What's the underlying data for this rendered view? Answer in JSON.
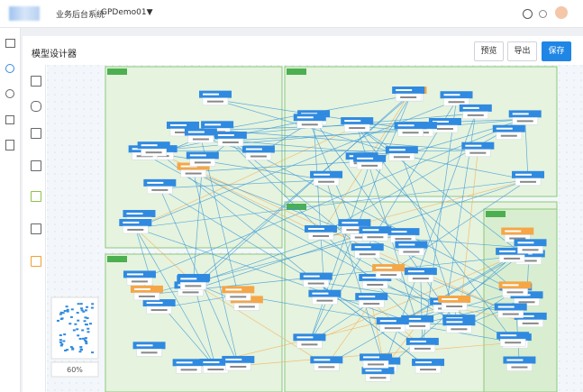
{
  "header": {
    "app_name": "业务后台系统",
    "project": "GPDemo01▼"
  },
  "designer": {
    "title": "模型设计器",
    "buttons": [
      "预览",
      "导出",
      "保存"
    ],
    "zoom": "60%"
  }
}
